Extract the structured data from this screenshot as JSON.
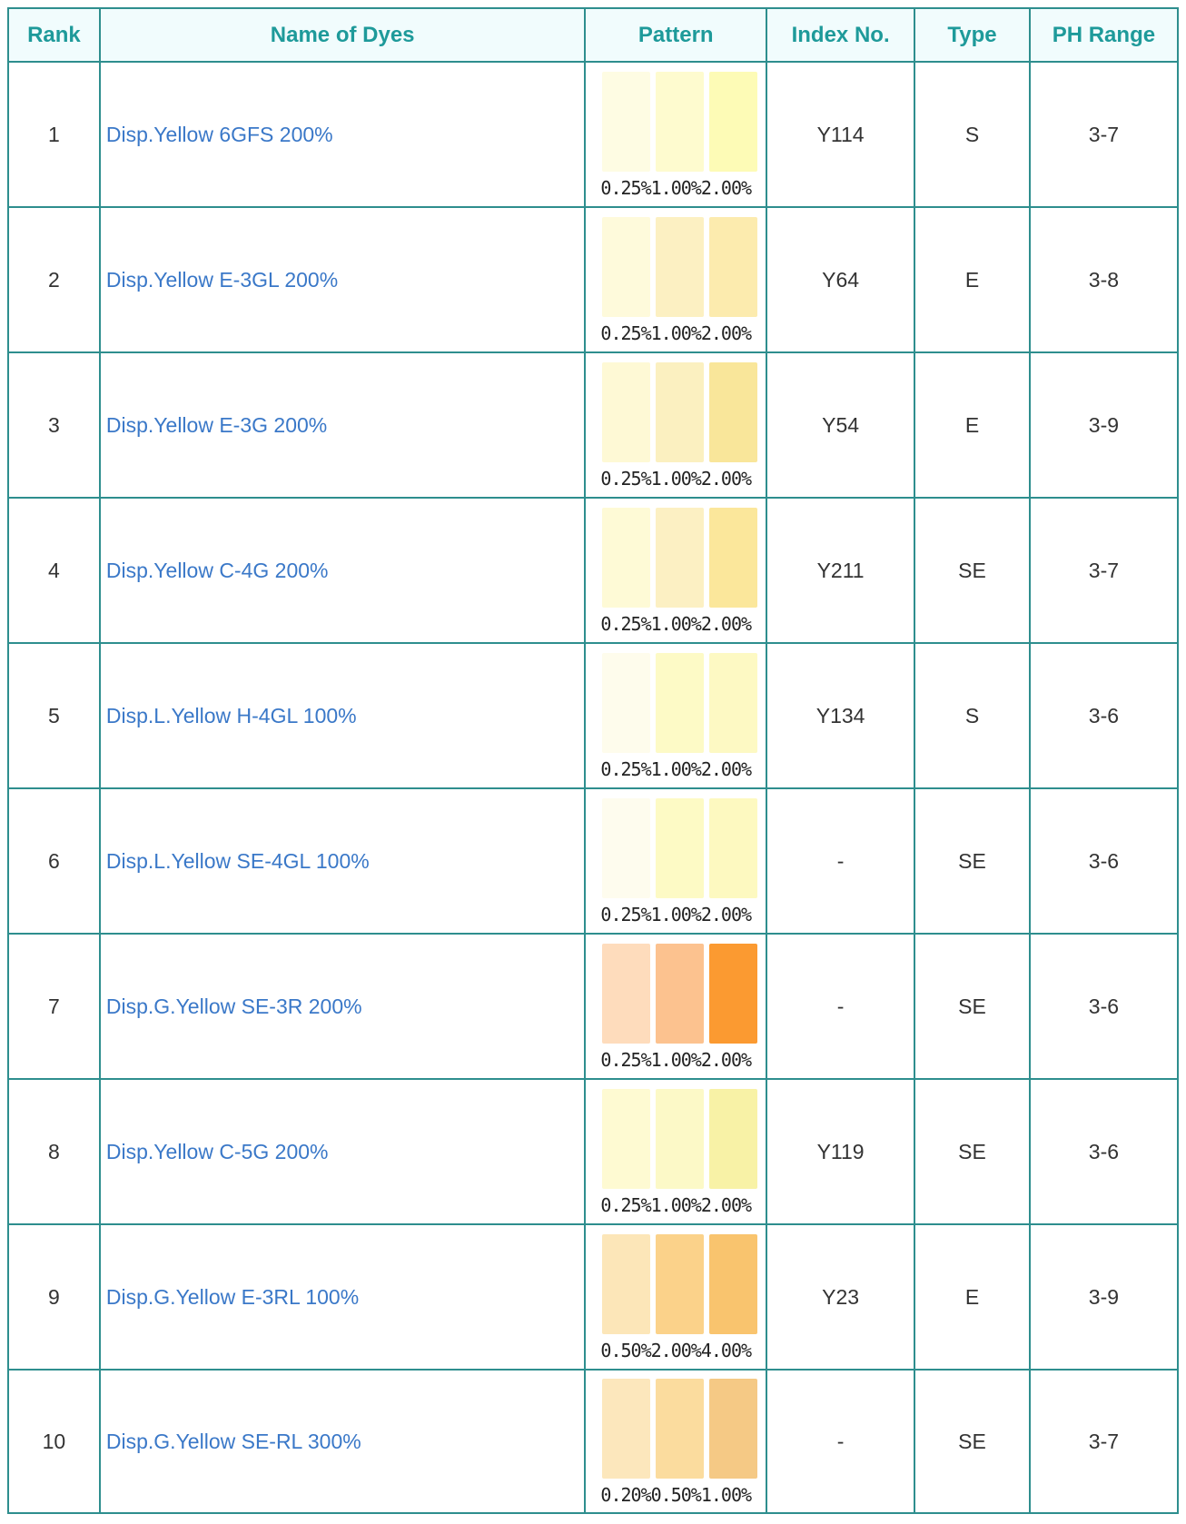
{
  "headers": {
    "rank": "Rank",
    "name": "Name of Dyes",
    "pattern": "Pattern",
    "index": "Index No.",
    "type": "Type",
    "ph": "PH Range"
  },
  "rows": [
    {
      "rank": "1",
      "name": "Disp.Yellow 6GFS 200%",
      "pattern_label": "0.25%1.00%2.00%",
      "colors": [
        "#fefce3",
        "#fefbcf",
        "#fdfbb6"
      ],
      "index": "Y114",
      "type": "S",
      "ph": "3-7"
    },
    {
      "rank": "2",
      "name": "Disp.Yellow E-3GL 200%",
      "pattern_label": "0.25%1.00%2.00%",
      "colors": [
        "#fefadb",
        "#fcf0c2",
        "#fcebae"
      ],
      "index": "Y64",
      "type": "E",
      "ph": "3-8"
    },
    {
      "rank": "3",
      "name": "Disp.Yellow E-3G 200%",
      "pattern_label": "0.25%1.00%2.00%",
      "colors": [
        "#fef9d5",
        "#fbf0c0",
        "#f9e69a"
      ],
      "index": "Y54",
      "type": "E",
      "ph": "3-9"
    },
    {
      "rank": "4",
      "name": "Disp.Yellow C-4G 200%",
      "pattern_label": "0.25%1.00%2.00%",
      "colors": [
        "#fefad6",
        "#fcf0c3",
        "#fbe79b"
      ],
      "index": "Y211",
      "type": "SE",
      "ph": "3-7"
    },
    {
      "rank": "5",
      "name": "Disp.L.Yellow H-4GL 100%",
      "pattern_label": "0.25%1.00%2.00%",
      "colors": [
        "#fefcec",
        "#fdfac6",
        "#fdf9c3"
      ],
      "index": "Y134",
      "type": "S",
      "ph": "3-6"
    },
    {
      "rank": "6",
      "name": "Disp.L.Yellow SE-4GL 100%",
      "pattern_label": "0.25%1.00%2.00%",
      "colors": [
        "#fefcee",
        "#fdfac5",
        "#fdf9c0"
      ],
      "index": "-",
      "type": "SE",
      "ph": "3-6"
    },
    {
      "rank": "7",
      "name": "Disp.G.Yellow SE-3R 200%",
      "pattern_label": "0.25%1.00%2.00%",
      "colors": [
        "#fedcbc",
        "#fcc28f",
        "#fb9a31"
      ],
      "index": "-",
      "type": "SE",
      "ph": "3-6"
    },
    {
      "rank": "8",
      "name": "Disp.Yellow C-5G 200%",
      "pattern_label": "0.25%1.00%2.00%",
      "colors": [
        "#fefad2",
        "#fcf9c7",
        "#f8f2a6"
      ],
      "index": "Y119",
      "type": "SE",
      "ph": "3-6"
    },
    {
      "rank": "9",
      "name": "Disp.G.Yellow E-3RL 100%",
      "pattern_label": "0.50%2.00%4.00%",
      "colors": [
        "#fce6b8",
        "#fbd28a",
        "#f9c46e"
      ],
      "index": "Y23",
      "type": "E",
      "ph": "3-9"
    },
    {
      "rank": "10",
      "name": "Disp.G.Yellow SE-RL 300%",
      "pattern_label": "0.20%0.50%1.00%",
      "colors": [
        "#fce7bc",
        "#fbdc9e",
        "#f5c985"
      ],
      "index": "-",
      "type": "SE",
      "ph": "3-7"
    }
  ],
  "theme": {
    "border": "#2e8e8e",
    "header_text": "#1e9a9a",
    "header_bg": "#f1fcfd",
    "link": "#3a78c8"
  }
}
